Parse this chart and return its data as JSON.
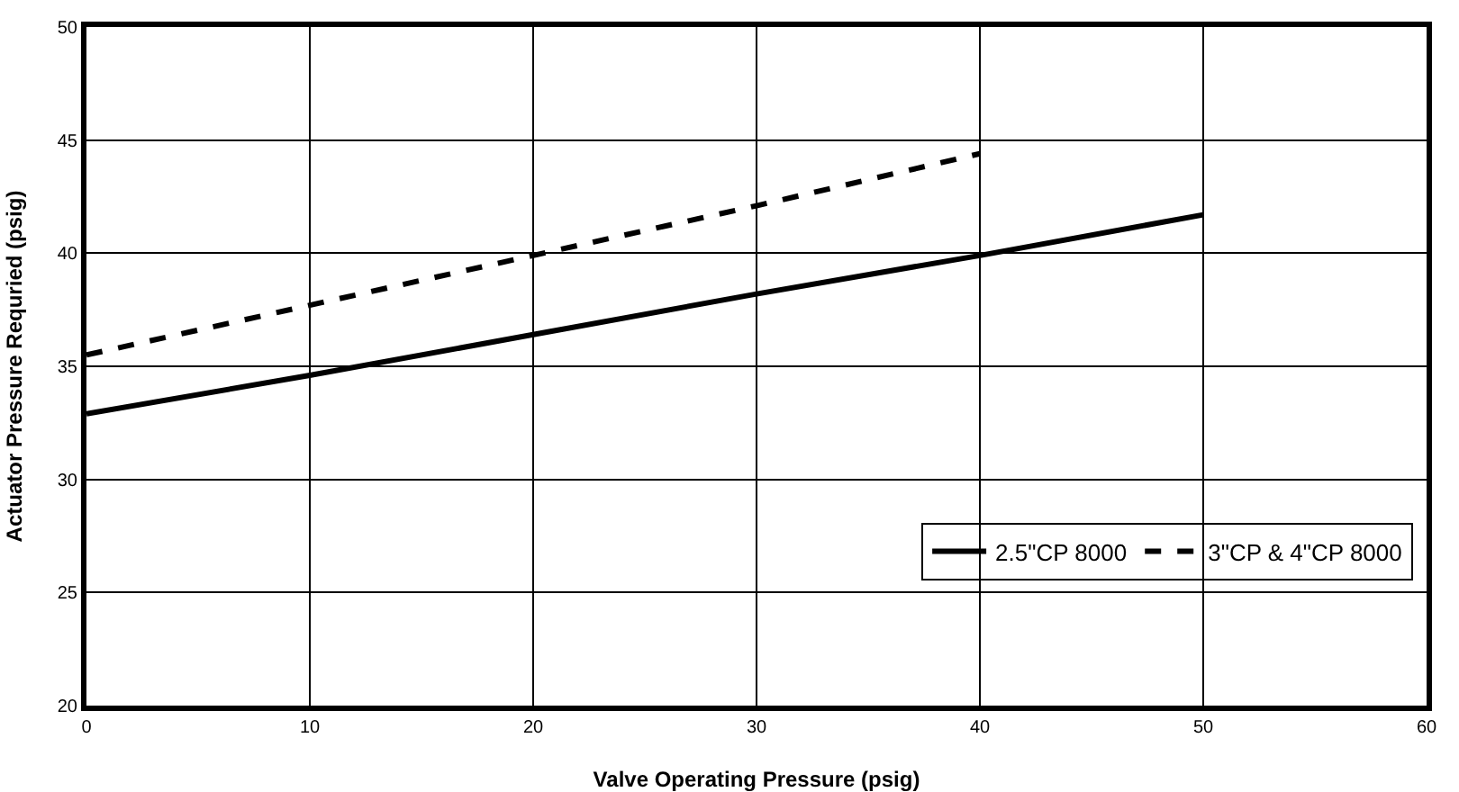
{
  "chart_data": {
    "type": "line",
    "xlabel": "Valve Operating Pressure (psig)",
    "ylabel": "Actuator Pressure Requried (psig)",
    "x": [
      0,
      10,
      20,
      30,
      40,
      50
    ],
    "series": [
      {
        "name": "2.5\"CP 8000",
        "color": "#000000",
        "line_style": "solid",
        "values": [
          32.9,
          34.6,
          36.4,
          38.2,
          39.9,
          41.7
        ]
      },
      {
        "name": "3\"CP & 4\"CP 8000",
        "color": "#000000",
        "line_style": "dashed",
        "values": [
          35.5,
          37.7,
          39.9,
          42.1,
          44.4,
          null
        ]
      }
    ],
    "xlim": [
      0,
      60
    ],
    "xticks": [
      0,
      10,
      20,
      30,
      40,
      50,
      60
    ],
    "ylim": [
      20,
      50
    ],
    "yticks": [
      20,
      25,
      30,
      35,
      40,
      45,
      50
    ],
    "grid": true,
    "legend": "bottom right",
    "marker": "none"
  }
}
